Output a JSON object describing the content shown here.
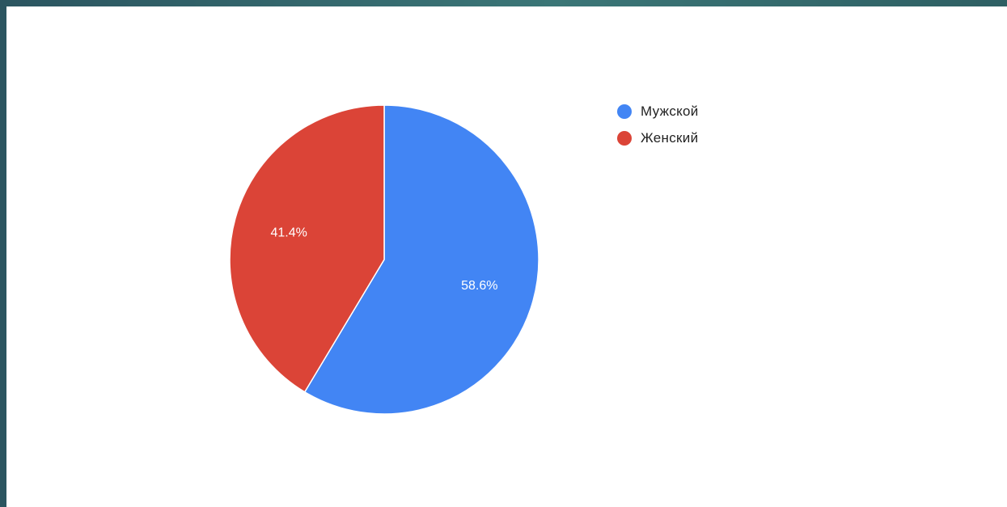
{
  "chart_data": {
    "type": "pie",
    "title": "",
    "legend_position": "right",
    "slices": [
      {
        "name": "Мужской",
        "value": 58.6,
        "label": "58.6%",
        "color": "#4285f4"
      },
      {
        "name": "Женский",
        "value": 41.4,
        "label": "41.4%",
        "color": "#db4437"
      }
    ],
    "start_angle_deg": 0,
    "direction": "clockwise"
  },
  "colors": {
    "frame_gradient": [
      "#2b5560",
      "#3b7677"
    ],
    "background": "#ffffff",
    "slice_separator": "#ffffff"
  }
}
